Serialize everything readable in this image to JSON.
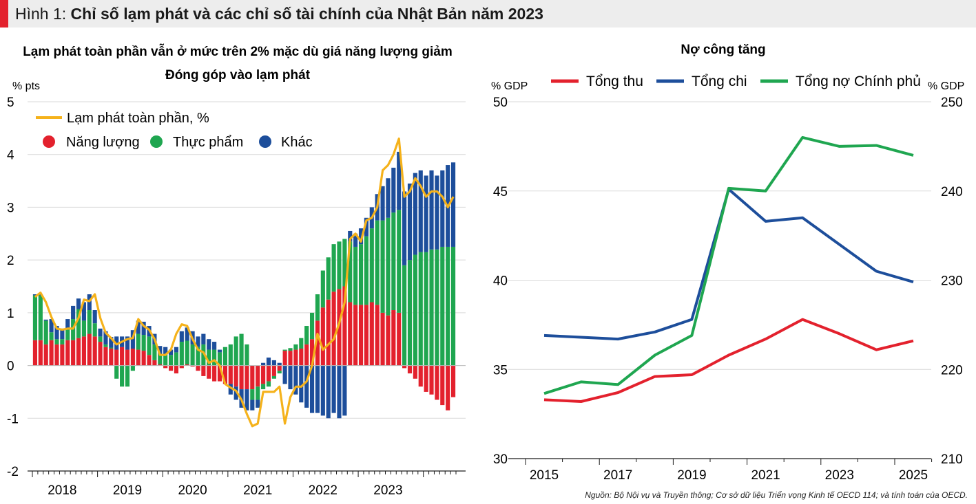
{
  "header": {
    "prefix": "Hình 1:",
    "title": "Chỉ số lạm phát và các chỉ số tài chính của Nhật Bản năm 2023"
  },
  "colors": {
    "energy": "#e3212d",
    "food": "#1fa650",
    "other": "#1d4e9b",
    "headline": "#f5b21b",
    "revenue": "#e3212d",
    "spending": "#1d4e9b",
    "debt": "#1fa650",
    "grid": "#d9d9d9",
    "axis": "#1a1a1a"
  },
  "chart_data": [
    {
      "type": "bar",
      "stacked": true,
      "title": "Lạm phát toàn phần vẫn ở mức trên 2% mặc dù giá năng lượng giảm",
      "subtitle": "Đóng góp vào lạm phát",
      "ylabel": "% pts",
      "ylim": [
        -2,
        5
      ],
      "yticks": [
        "5",
        "4",
        "3",
        "2",
        "1",
        "0",
        "-1",
        "-2"
      ],
      "xlabels": [
        "2018",
        "2019",
        "2020",
        "2021",
        "2022",
        "2023"
      ],
      "grid": true,
      "legend": {
        "line_label": "Lạm phát toàn phần, %",
        "energy_label": "Năng lượng",
        "food_label": "Thực phẩm",
        "other_label": "Khác",
        "placement": "top-left"
      },
      "energy": [
        0.48,
        0.48,
        0.4,
        0.48,
        0.4,
        0.4,
        0.48,
        0.48,
        0.52,
        0.55,
        0.6,
        0.55,
        0.45,
        0.35,
        0.32,
        0.3,
        0.35,
        0.3,
        0.32,
        0.3,
        0.28,
        0.2,
        0.1,
        0.02,
        -0.05,
        -0.1,
        -0.15,
        -0.05,
        0.02,
        -0.02,
        -0.1,
        -0.2,
        -0.25,
        -0.3,
        -0.3,
        -0.35,
        -0.35,
        -0.4,
        -0.45,
        -0.45,
        -0.45,
        -0.4,
        -0.35,
        -0.3,
        -0.2,
        -0.1,
        0.28,
        0.28,
        0.3,
        0.32,
        0.4,
        0.5,
        0.85,
        1.1,
        1.25,
        1.4,
        1.45,
        1.5,
        1.2,
        1.15,
        1.15,
        1.15,
        1.2,
        1.15,
        1.0,
        0.95,
        1.05,
        1.0,
        -0.05,
        -0.15,
        -0.25,
        -0.4,
        -0.5,
        -0.55,
        -0.65,
        -0.75,
        -0.85,
        -0.6
      ],
      "food": [
        0.85,
        0.85,
        0.45,
        0.15,
        0.1,
        0.1,
        0.2,
        0.4,
        0.55,
        0.3,
        0.45,
        0.25,
        0.1,
        0.05,
        0.02,
        -0.25,
        -0.4,
        -0.4,
        -0.1,
        0.3,
        0.3,
        0.35,
        0.3,
        0.2,
        0.2,
        0.2,
        0.25,
        0.45,
        0.45,
        0.4,
        0.35,
        0.4,
        0.3,
        0.3,
        0.25,
        0.35,
        0.4,
        0.55,
        0.6,
        0.4,
        -0.2,
        -0.25,
        -0.1,
        -0.1,
        -0.05,
        -0.05,
        0.02,
        0.05,
        0.1,
        0.2,
        0.35,
        0.5,
        0.5,
        0.7,
        0.8,
        0.9,
        0.9,
        0.9,
        1.15,
        1.1,
        1.15,
        1.3,
        1.4,
        1.6,
        1.75,
        1.85,
        1.85,
        1.95,
        1.9,
        2.0,
        2.1,
        2.15,
        2.15,
        2.2,
        2.2,
        2.25,
        2.25,
        2.25
      ],
      "other": [
        0.02,
        0.02,
        0.02,
        0.25,
        0.25,
        0.2,
        0.2,
        0.25,
        0.2,
        0.35,
        0.3,
        0.25,
        0.15,
        0.25,
        0.2,
        0.25,
        0.2,
        0.25,
        0.35,
        0.25,
        0.25,
        0.2,
        0.2,
        0.15,
        0.15,
        0.1,
        0.1,
        0.2,
        0.25,
        0.25,
        0.2,
        0.2,
        0.2,
        0.15,
        0.05,
        0.0,
        -0.2,
        -0.25,
        -0.35,
        -0.4,
        -0.2,
        -0.15,
        0.05,
        0.15,
        0.1,
        0.05,
        -0.35,
        -0.45,
        -0.55,
        -0.7,
        -0.8,
        -0.9,
        -0.9,
        -0.95,
        -1.0,
        -0.9,
        -1.0,
        -0.95,
        0.2,
        0.25,
        0.3,
        0.35,
        0.4,
        0.5,
        0.65,
        0.75,
        0.85,
        1.1,
        1.4,
        1.45,
        1.55,
        1.55,
        1.45,
        1.5,
        1.4,
        1.45,
        1.55,
        1.6
      ],
      "headline": [
        1.3,
        1.38,
        1.2,
        0.92,
        0.7,
        0.68,
        0.7,
        0.7,
        0.9,
        1.25,
        1.22,
        1.35,
        0.9,
        0.62,
        0.52,
        0.4,
        0.45,
        0.5,
        0.52,
        0.88,
        0.75,
        0.68,
        0.5,
        0.2,
        0.2,
        0.3,
        0.6,
        0.78,
        0.75,
        0.5,
        0.3,
        0.25,
        0.05,
        0.1,
        0.0,
        -0.35,
        -0.42,
        -0.48,
        -0.65,
        -0.92,
        -1.15,
        -1.1,
        -0.5,
        -0.5,
        -0.5,
        -0.4,
        -1.1,
        -0.6,
        -0.4,
        -0.4,
        -0.3,
        0.0,
        0.6,
        0.3,
        0.4,
        0.5,
        0.8,
        1.2,
        2.4,
        2.5,
        2.35,
        2.75,
        2.8,
        3.0,
        3.7,
        3.8,
        4.0,
        4.3,
        3.2,
        3.3,
        3.55,
        3.4,
        3.2,
        3.3,
        3.3,
        3.2,
        3.0,
        3.2
      ]
    },
    {
      "type": "line",
      "title": "Nợ công tăng",
      "ylabel_left": "% GDP",
      "ylabel_right": "% GDP",
      "left_ylim": [
        30,
        50
      ],
      "right_ylim": [
        210,
        250
      ],
      "left_yticks": [
        "50",
        "45",
        "40",
        "35",
        "30"
      ],
      "right_yticks": [
        "250",
        "240",
        "230",
        "220",
        "210"
      ],
      "xticks": [
        "2015",
        "2017",
        "2019",
        "2021",
        "2023",
        "2025"
      ],
      "x": [
        2015,
        2016,
        2017,
        2018,
        2019,
        2020,
        2021,
        2022,
        2023,
        2024,
        2025
      ],
      "grid": true,
      "legend_placement": "top",
      "series": [
        {
          "name": "Tổng thu",
          "axis": "left",
          "values": [
            33.3,
            33.2,
            33.7,
            34.6,
            34.7,
            35.8,
            36.7,
            37.8,
            37.0,
            36.1,
            36.6
          ]
        },
        {
          "name": "Tổng chi",
          "axis": "left",
          "values": [
            36.9,
            36.8,
            36.7,
            37.1,
            37.8,
            45.1,
            43.3,
            43.5,
            42.0,
            40.5,
            39.9
          ]
        },
        {
          "name": "Tổng nợ Chính phủ",
          "axis": "right",
          "values": [
            217.3,
            218.6,
            218.3,
            221.6,
            223.8,
            240.3,
            240.0,
            246.0,
            245.0,
            245.1,
            244.0
          ]
        }
      ]
    }
  ],
  "source": "Nguồn: Bộ Nội vụ và Truyền thông; Cơ sở dữ liệu Triển vọng Kinh tế OECD 114; và tính toán của OECD."
}
